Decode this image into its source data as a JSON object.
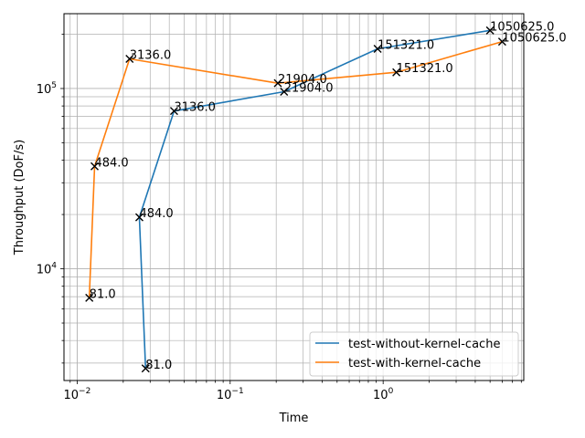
{
  "chart_data": {
    "type": "line",
    "xlabel": "Time",
    "ylabel": "Throughput (DoF/s)",
    "x_scale": "log",
    "y_scale": "log",
    "xlim": [
      0.0082,
      8.3
    ],
    "ylim": [
      2400,
      260000
    ],
    "x_ticks": [
      {
        "value": 0.01,
        "label_base": "10",
        "label_exp": "−2"
      },
      {
        "value": 0.1,
        "label_base": "10",
        "label_exp": "−1"
      },
      {
        "value": 1,
        "label_base": "10",
        "label_exp": "0"
      }
    ],
    "y_ticks": [
      {
        "value": 10000,
        "label_base": "10",
        "label_exp": "4"
      },
      {
        "value": 100000,
        "label_base": "10",
        "label_exp": "5"
      }
    ],
    "grid": true,
    "legend_position": "lower-right",
    "series": [
      {
        "name": "test-without-kernel-cache",
        "color": "#1f77b4",
        "points": [
          {
            "x": 0.028,
            "y": 2800,
            "label": "81.0"
          },
          {
            "x": 0.0255,
            "y": 19300,
            "label": "484.0"
          },
          {
            "x": 0.043,
            "y": 75000,
            "label": "3136.0"
          },
          {
            "x": 0.225,
            "y": 96000,
            "label": "21904.0"
          },
          {
            "x": 0.92,
            "y": 166000,
            "label": "151321.0"
          },
          {
            "x": 5.0,
            "y": 210000,
            "label": "1050625.0"
          }
        ]
      },
      {
        "name": "test-with-kernel-cache",
        "color": "#ff7f0e",
        "points": [
          {
            "x": 0.012,
            "y": 6900,
            "label": "81.0"
          },
          {
            "x": 0.013,
            "y": 37000,
            "label": "484.0"
          },
          {
            "x": 0.022,
            "y": 146000,
            "label": "3136.0"
          },
          {
            "x": 0.205,
            "y": 107000,
            "label": "21904.0"
          },
          {
            "x": 1.22,
            "y": 123000,
            "label": "151321.0"
          },
          {
            "x": 6.0,
            "y": 182000,
            "label": "1050625.0"
          }
        ]
      }
    ],
    "marker_color": "#000000"
  }
}
